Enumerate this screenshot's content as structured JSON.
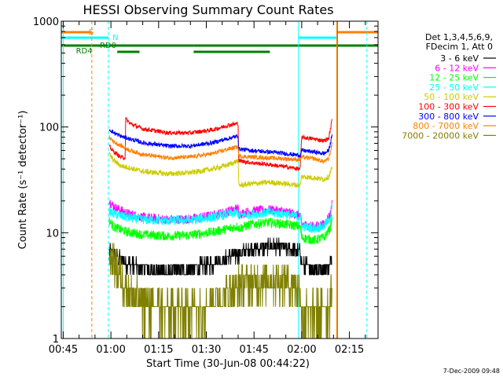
{
  "chart_data": {
    "type": "line",
    "title": "HESSI Observing Summary Count Rates",
    "xlabel": "Start Time (30-Jun-08 00:44:22)",
    "ylabel": "Count Rate (s⁻¹ detector⁻¹)",
    "y_scale": "log",
    "ylim": [
      1,
      1000
    ],
    "y_ticks": [
      "1",
      "10",
      "100",
      "1000"
    ],
    "xlim_minutes": [
      44.4,
      144.0
    ],
    "x_ticks": [
      {
        "label": "00:45",
        "min": 45
      },
      {
        "label": "01:00",
        "min": 60
      },
      {
        "label": "01:15",
        "min": 75
      },
      {
        "label": "01:30",
        "min": 90
      },
      {
        "label": "01:45",
        "min": 105
      },
      {
        "label": "02:00",
        "min": 120
      },
      {
        "label": "02:15",
        "min": 135
      }
    ],
    "legend": {
      "placement": "right",
      "header": [
        "Det 1,3,4,5,6,9,",
        "FDecim 1, Att 0"
      ],
      "entries": [
        {
          "label": "3 - 6 keV",
          "color": "#000000"
        },
        {
          "label": "6 - 12 keV",
          "color": "#ff00ff"
        },
        {
          "label": "12 - 25 keV",
          "color": "#00ff00"
        },
        {
          "label": "25 - 50 keV",
          "color": "#00ffff"
        },
        {
          "label": "50 - 100 keV",
          "color": "#cccc00"
        },
        {
          "label": "100 - 300 keV",
          "color": "#ff0000"
        },
        {
          "label": "300 - 800 keV",
          "color": "#0000ff"
        },
        {
          "label": "800 - 7000 keV",
          "color": "#ff8000"
        },
        {
          "label": "7000 - 20000 keV",
          "color": "#808000"
        }
      ]
    },
    "series": [
      {
        "name": "3 - 6 keV",
        "color": "#000000",
        "start_min": 59.5,
        "end_min": 129.6,
        "noise": 0.07,
        "floor": 4,
        "points": [
          [
            59.5,
            6.5
          ],
          [
            62,
            5.8
          ],
          [
            65,
            5.2
          ],
          [
            68,
            4.8
          ],
          [
            72,
            4.5
          ],
          [
            78,
            4.3
          ],
          [
            85,
            4.5
          ],
          [
            93,
            5.2
          ],
          [
            98,
            6
          ],
          [
            100,
            6.3
          ],
          [
            100.2,
            6.3
          ],
          [
            103,
            6.8
          ],
          [
            110,
            7.5
          ],
          [
            117,
            7
          ],
          [
            119.5,
            6.5
          ],
          [
            120,
            5
          ],
          [
            125,
            4.5
          ],
          [
            128.5,
            4.8
          ],
          [
            129.6,
            6
          ]
        ]
      },
      {
        "name": "6 - 12 keV",
        "color": "#ff00ff",
        "start_min": 59.5,
        "end_min": 129.6,
        "noise": 0.045,
        "points": [
          [
            59.5,
            20
          ],
          [
            61,
            17.5
          ],
          [
            65,
            15.3
          ],
          [
            70,
            14
          ],
          [
            78,
            13.3
          ],
          [
            85,
            13.5
          ],
          [
            92,
            14.6
          ],
          [
            97,
            16
          ],
          [
            100,
            17
          ],
          [
            100.2,
            15
          ],
          [
            104,
            16
          ],
          [
            110,
            16.5
          ],
          [
            115,
            15.8
          ],
          [
            119.5,
            14.5
          ],
          [
            120,
            12
          ],
          [
            124,
            11.5
          ],
          [
            127,
            12
          ],
          [
            129,
            15
          ],
          [
            129.6,
            20
          ]
        ]
      },
      {
        "name": "12 - 25 keV",
        "color": "#00ff00",
        "start_min": 59.5,
        "end_min": 129.6,
        "noise": 0.045,
        "points": [
          [
            59.5,
            13
          ],
          [
            61,
            11.3
          ],
          [
            65,
            10.2
          ],
          [
            70,
            9.6
          ],
          [
            78,
            9.3
          ],
          [
            85,
            9.5
          ],
          [
            92,
            10.2
          ],
          [
            97,
            10.9
          ],
          [
            100,
            11.5
          ],
          [
            100.2,
            11
          ],
          [
            104,
            12
          ],
          [
            110,
            12.5
          ],
          [
            115,
            12
          ],
          [
            119.5,
            11.5
          ],
          [
            120,
            9
          ],
          [
            124,
            8.5
          ],
          [
            127,
            9
          ],
          [
            129,
            11
          ],
          [
            129.6,
            15
          ]
        ]
      },
      {
        "name": "25 - 50 keV",
        "color": "#00ffff",
        "start_min": 59.5,
        "end_min": 129.6,
        "noise": 0.045,
        "points": [
          [
            59.5,
            16
          ],
          [
            61,
            15
          ],
          [
            65,
            14
          ],
          [
            70,
            13.3
          ],
          [
            78,
            13
          ],
          [
            85,
            13.2
          ],
          [
            92,
            14
          ],
          [
            97,
            15
          ],
          [
            100,
            15.5
          ],
          [
            100.2,
            14.5
          ],
          [
            104,
            15
          ],
          [
            110,
            15.5
          ],
          [
            115,
            15
          ],
          [
            119.5,
            14
          ],
          [
            120,
            11.5
          ],
          [
            124,
            11
          ],
          [
            127,
            11.5
          ],
          [
            129,
            14
          ],
          [
            129.6,
            19
          ]
        ]
      },
      {
        "name": "50 - 100 keV",
        "color": "#cccc00",
        "start_min": 59.5,
        "end_min": 129.6,
        "noise": 0.025,
        "points": [
          [
            59.5,
            55
          ],
          [
            61,
            48
          ],
          [
            63,
            43
          ],
          [
            66,
            41
          ],
          [
            70,
            38
          ],
          [
            78,
            36
          ],
          [
            85,
            37
          ],
          [
            92,
            40
          ],
          [
            97,
            44
          ],
          [
            100,
            48
          ],
          [
            100.2,
            28
          ],
          [
            104,
            29
          ],
          [
            110,
            30
          ],
          [
            115,
            29
          ],
          [
            119.5,
            28
          ],
          [
            120,
            34
          ],
          [
            124,
            33
          ],
          [
            127,
            32
          ],
          [
            128.5,
            34
          ],
          [
            129.6,
            42
          ]
        ]
      },
      {
        "name": "100 - 300 keV",
        "color": "#ff0000",
        "start_min": 59.5,
        "end_min": 129.6,
        "noise": 0.02,
        "points": [
          [
            59.5,
            65
          ],
          [
            61,
            58
          ],
          [
            63,
            52
          ],
          [
            64.5,
            51
          ],
          [
            64.6,
            120
          ],
          [
            66,
            108
          ],
          [
            70,
            96
          ],
          [
            78,
            88
          ],
          [
            85,
            88
          ],
          [
            92,
            94
          ],
          [
            97,
            104
          ],
          [
            100,
            108
          ],
          [
            100.2,
            48
          ],
          [
            104,
            46
          ],
          [
            110,
            44
          ],
          [
            115,
            42
          ],
          [
            119.5,
            40
          ],
          [
            120,
            80
          ],
          [
            124,
            77
          ],
          [
            127,
            74
          ],
          [
            128.5,
            78
          ],
          [
            129.6,
            120
          ]
        ]
      },
      {
        "name": "300 - 800 keV",
        "color": "#0000ff",
        "start_min": 59.5,
        "end_min": 129.6,
        "noise": 0.02,
        "points": [
          [
            59.5,
            95
          ],
          [
            61,
            88
          ],
          [
            63,
            82
          ],
          [
            66,
            77
          ],
          [
            70,
            71
          ],
          [
            78,
            66
          ],
          [
            85,
            66
          ],
          [
            92,
            71
          ],
          [
            97,
            78
          ],
          [
            100,
            82
          ],
          [
            100.2,
            62
          ],
          [
            104,
            60
          ],
          [
            110,
            58
          ],
          [
            115,
            56
          ],
          [
            119.5,
            54
          ],
          [
            120,
            60
          ],
          [
            124,
            58
          ],
          [
            127,
            56
          ],
          [
            128.5,
            60
          ],
          [
            129.6,
            85
          ]
        ]
      },
      {
        "name": "800 - 7000 keV",
        "color": "#ff8000",
        "start_min": 59.5,
        "end_min": 129.6,
        "noise": 0.02,
        "points": [
          [
            59.5,
            80
          ],
          [
            61,
            72
          ],
          [
            63,
            67
          ],
          [
            66,
            60
          ],
          [
            70,
            55
          ],
          [
            78,
            51
          ],
          [
            85,
            52
          ],
          [
            92,
            56
          ],
          [
            97,
            62
          ],
          [
            100,
            65
          ],
          [
            100.2,
            53
          ],
          [
            104,
            52
          ],
          [
            110,
            51
          ],
          [
            115,
            50
          ],
          [
            119.5,
            49
          ],
          [
            120,
            52
          ],
          [
            124,
            50
          ],
          [
            127,
            47
          ],
          [
            128.5,
            50
          ],
          [
            129.6,
            70
          ]
        ]
      },
      {
        "name": "7000 - 20000 keV",
        "color": "#808000",
        "start_min": 59.5,
        "end_min": 129.6,
        "noise": 0.18,
        "floor": 1,
        "points": [
          [
            59.5,
            6
          ],
          [
            62,
            4.5
          ],
          [
            65,
            3
          ],
          [
            68,
            2.4
          ],
          [
            72,
            2
          ],
          [
            80,
            1.9
          ],
          [
            88,
            2
          ],
          [
            95,
            2.5
          ],
          [
            100,
            3
          ],
          [
            100.2,
            3.2
          ],
          [
            104,
            3.4
          ],
          [
            110,
            3.6
          ],
          [
            116,
            3.4
          ],
          [
            119.5,
            3
          ],
          [
            120,
            1.7
          ],
          [
            125,
            1.8
          ],
          [
            128.5,
            2
          ],
          [
            129.6,
            3
          ]
        ]
      }
    ],
    "vertical_lines": [
      {
        "min": 45.0,
        "color": "#00ffff",
        "style": "solid"
      },
      {
        "min": 54.0,
        "color": "#ff8000",
        "style": "dashed"
      },
      {
        "min": 59.2,
        "color": "#00ffff",
        "style": "dashed"
      },
      {
        "min": 119.0,
        "color": "#00ffff",
        "style": "solid"
      },
      {
        "min": 131.0,
        "color": "#ff8000",
        "style": "solid"
      },
      {
        "min": 131.0,
        "color": "#808000",
        "style": "solid"
      },
      {
        "min": 140.5,
        "color": "#00ffff",
        "style": "dashed"
      }
    ],
    "state_bars": [
      {
        "label": "S",
        "color": "#ff8000",
        "level_px": 41,
        "segments": [
          [
            44.4,
            54.0
          ],
          [
            131.0,
            144.0
          ]
        ]
      },
      {
        "label": "N",
        "color": "#00ffff",
        "level_px": 48,
        "segments": [
          [
            44.4,
            59.2
          ],
          [
            119.0,
            131.0
          ]
        ]
      },
      {
        "label": "RD0",
        "color": "#008000",
        "level_px": 58,
        "segments": [
          [
            44.4,
            86.0
          ],
          [
            86.0,
            110.0
          ],
          [
            110.0,
            144.0
          ]
        ]
      },
      {
        "label": "RD4",
        "color": "#008000",
        "level_px": 66,
        "segments": [
          [
            62.0,
            69.0
          ]
        ]
      }
    ]
  },
  "timestamp": "7-Dec-2009 09:48"
}
